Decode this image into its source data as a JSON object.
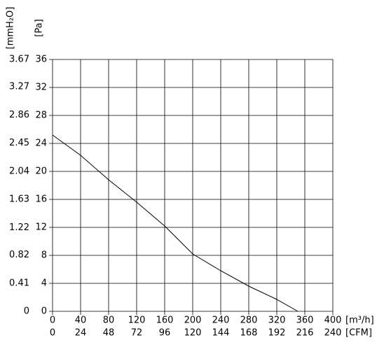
{
  "chart_data": {
    "type": "line",
    "y_label": "[Pa]",
    "y2_label": "[mmH₂O]",
    "x_label": "[m³/h]",
    "x2_label": "[CFM]",
    "x": [
      0,
      40,
      80,
      120,
      160,
      200,
      240,
      280,
      320,
      350
    ],
    "series": [
      {
        "color": "#000000",
        "values": [
          25.2,
          22.3,
          18.8,
          15.6,
          12.2,
          8.2,
          5.8,
          3.6,
          1.7,
          0
        ]
      }
    ],
    "xlim": [
      0,
      400
    ],
    "xticks": [
      0,
      40,
      80,
      120,
      160,
      200,
      240,
      280,
      320,
      360,
      400
    ],
    "x2lim": [
      0,
      240
    ],
    "x2ticks": [
      0,
      24,
      48,
      72,
      96,
      120,
      144,
      168,
      192,
      216,
      240
    ],
    "ylim": [
      0,
      36
    ],
    "yticks": [
      0,
      4,
      8,
      12,
      16,
      20,
      24,
      28,
      32,
      36
    ],
    "y2lim": [
      0,
      3.67
    ],
    "y2ticks": [
      0,
      0.41,
      0.82,
      1.22,
      1.63,
      2.04,
      2.45,
      2.86,
      3.27,
      3.67
    ],
    "grid": true
  }
}
